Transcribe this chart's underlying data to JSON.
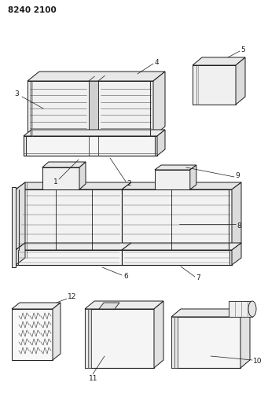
{
  "title": "8240 2100",
  "bg_color": "#ffffff",
  "line_color": "#1a1a1a",
  "fig_width": 3.41,
  "fig_height": 5.33,
  "dpi": 100
}
